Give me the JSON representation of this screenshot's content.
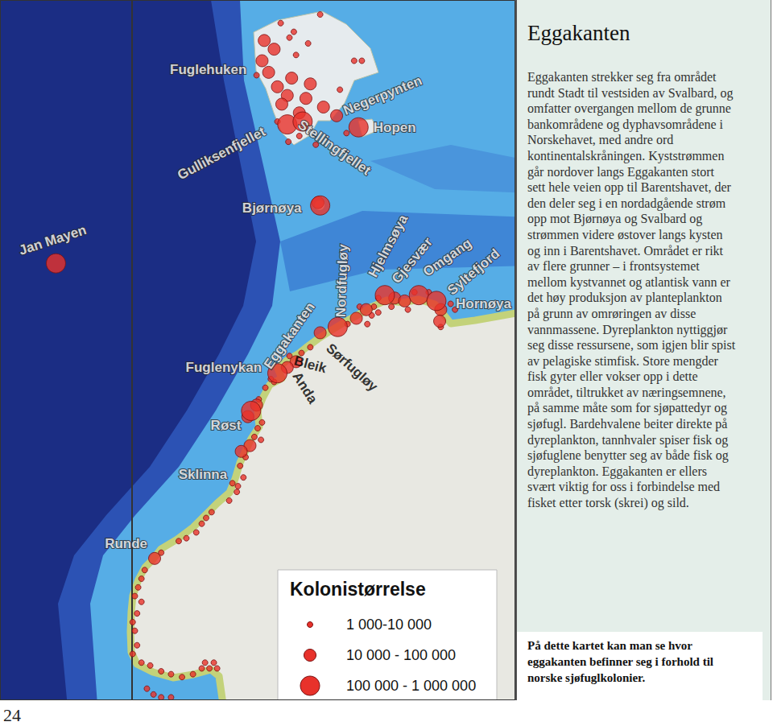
{
  "chart_data": {
    "type": "scatter",
    "xlim": [
      -12,
      35
    ],
    "ylim": [
      56.8,
      81
    ],
    "tick_labels": false,
    "grid": false,
    "legend": "lower right",
    "legend_title": "Kolonistørrelse",
    "marker": "circle",
    "series": [
      {
        "name": "1 000-10 000",
        "color": "#e8322b",
        "points": [
          [
            13.6,
            80.2
          ],
          [
            14.4,
            79.7
          ],
          [
            16.1,
            79.5
          ],
          [
            17.2,
            80.5
          ],
          [
            20.3,
            78.9
          ],
          [
            21.0,
            78.9
          ],
          [
            15.0,
            79.1
          ],
          [
            15.3,
            76.3
          ],
          [
            16.8,
            76.0
          ],
          [
            14.3,
            76.1
          ],
          [
            13.3,
            76.8
          ],
          [
            19.6,
            76.4
          ],
          [
            19.0,
            77.9
          ],
          [
            11.4,
            78.4
          ],
          [
            14.8,
            79.9
          ],
          [
            22.1,
            70.4
          ],
          [
            22.5,
            70.7
          ],
          [
            23.7,
            70.4
          ],
          [
            25.2,
            70.3
          ],
          [
            25.8,
            70.9
          ],
          [
            27.1,
            70.9
          ],
          [
            29.1,
            70.5
          ],
          [
            29.5,
            70.3
          ],
          [
            28.2,
            69.7
          ],
          [
            19.7,
            69.8
          ],
          [
            21.5,
            69.8
          ],
          [
            22.5,
            70.2
          ],
          [
            20.8,
            70.4
          ],
          [
            21.9,
            70.1
          ],
          [
            16.3,
            69.0
          ],
          [
            15.5,
            68.8
          ],
          [
            14.4,
            68.7
          ],
          [
            13.0,
            67.8
          ],
          [
            12.2,
            67.6
          ],
          [
            12.7,
            67.9
          ],
          [
            11.6,
            67.2
          ],
          [
            11.9,
            66.4
          ],
          [
            11.5,
            66.2
          ],
          [
            11.2,
            65.9
          ],
          [
            11.8,
            65.8
          ],
          [
            10.4,
            65.2
          ],
          [
            9.9,
            64.9
          ],
          [
            10.2,
            64.5
          ],
          [
            9.7,
            64.2
          ],
          [
            9.2,
            64.3
          ],
          [
            9.6,
            64.0
          ],
          [
            8.9,
            63.7
          ],
          [
            7.3,
            63.3
          ],
          [
            6.8,
            63.1
          ],
          [
            6.4,
            62.9
          ],
          [
            5.9,
            62.6
          ],
          [
            5.0,
            62.4
          ],
          [
            4.3,
            62.3
          ],
          [
            2.7,
            61.9
          ],
          [
            1.2,
            61.3
          ],
          [
            0.9,
            61.0
          ],
          [
            0.6,
            60.7
          ],
          [
            0.3,
            60.4
          ],
          [
            0.9,
            60.2
          ],
          [
            0.5,
            59.8
          ],
          [
            0.1,
            59.5
          ],
          [
            0.3,
            59.2
          ],
          [
            0.5,
            58.7
          ],
          [
            0.1,
            58.4
          ],
          [
            0.9,
            58.1
          ],
          [
            1.7,
            58.0
          ],
          [
            2.7,
            57.8
          ],
          [
            3.6,
            57.7
          ],
          [
            4.6,
            57.6
          ],
          [
            5.6,
            57.7
          ],
          [
            6.4,
            57.9
          ],
          [
            7.1,
            57.9
          ],
          [
            7.8,
            57.9
          ],
          [
            7.5,
            58.1
          ],
          [
            6.7,
            58.1
          ],
          [
            2.0,
            57.0
          ],
          [
            2.7,
            56.9
          ],
          [
            3.6,
            56.9
          ],
          [
            1.4,
            57.2
          ]
        ]
      },
      {
        "name": "10 000 - 100 000",
        "color": "#e8322b",
        "points": [
          [
            12.1,
            79.6
          ],
          [
            13.0,
            79.3
          ],
          [
            11.9,
            78.9
          ],
          [
            12.5,
            78.5
          ],
          [
            13.3,
            78.0
          ],
          [
            14.6,
            78.3
          ],
          [
            14.2,
            77.7
          ],
          [
            13.7,
            77.4
          ],
          [
            15.9,
            77.6
          ],
          [
            15.3,
            77.1
          ],
          [
            17.5,
            77.3
          ],
          [
            18.7,
            77.0
          ],
          [
            16.3,
            78.1
          ],
          [
            17.0,
            74.0
          ],
          [
            17.2,
            69.5
          ],
          [
            20.5,
            70.0
          ],
          [
            21.4,
            70.3
          ],
          [
            24.0,
            70.7
          ],
          [
            24.9,
            70.6
          ],
          [
            28.2,
            70.3
          ],
          [
            28.1,
            69.9
          ],
          [
            15.0,
            68.5
          ],
          [
            14.2,
            68.3
          ],
          [
            11.4,
            67.0
          ],
          [
            10.6,
            66.6
          ],
          [
            10.8,
            65.6
          ],
          [
            10.0,
            65.4
          ],
          [
            2.1,
            61.7
          ]
        ]
      },
      {
        "name": "100 000 - 1 000 000",
        "color": "#e8322b",
        "points": [
          [
            14.2,
            76.7
          ],
          [
            15.6,
            76.8
          ],
          [
            20.7,
            76.6
          ],
          [
            17.2,
            73.9
          ],
          [
            -6.9,
            71.9
          ],
          [
            23.1,
            70.8
          ],
          [
            26.2,
            70.8
          ],
          [
            27.8,
            70.6
          ],
          [
            18.8,
            69.7
          ],
          [
            13.3,
            68.1
          ],
          [
            10.9,
            66.8
          ]
        ]
      }
    ],
    "place_labels": [
      {
        "name": "Fuglehuken",
        "lon": 7.0,
        "lat": 78.6,
        "color": "#ffffff"
      },
      {
        "name": "Negerpynten",
        "lon": 22.9,
        "lat": 77.7,
        "color": "#ffffff"
      },
      {
        "name": "Hopen",
        "lon": 24.0,
        "lat": 76.6,
        "color": "#ffffff"
      },
      {
        "name": "Gulliksenfjellet",
        "lon": 8.2,
        "lat": 75.7,
        "color": "#ffffff"
      },
      {
        "name": "Stellingfjellet",
        "lon": 18.5,
        "lat": 75.9,
        "color": "#ffffff"
      },
      {
        "name": "Bjørnøya",
        "lon": 12.8,
        "lat": 73.8,
        "color": "#ffffff"
      },
      {
        "name": "Jan Mayen",
        "lon": -7.2,
        "lat": 72.7,
        "color": "#ffffff"
      },
      {
        "name": "Nordfugløy",
        "lon": 19.2,
        "lat": 71.3,
        "color": "#ffffff"
      },
      {
        "name": "Hjelmsøya",
        "lon": 23.4,
        "lat": 72.5,
        "color": "#ffffff"
      },
      {
        "name": "Gjesvær",
        "lon": 25.6,
        "lat": 72.0,
        "color": "#ffffff"
      },
      {
        "name": "Omgang",
        "lon": 28.8,
        "lat": 72.1,
        "color": "#ffffff"
      },
      {
        "name": "Syltefjord",
        "lon": 31.2,
        "lat": 71.6,
        "color": "#ffffff"
      },
      {
        "name": "Hornøya",
        "lon": 32.1,
        "lat": 70.5,
        "color": "#ffffff"
      },
      {
        "name": "Eggakanten",
        "lon": 14.4,
        "lat": 69.4,
        "color": "#ffffff"
      },
      {
        "name": "Fuglenykan",
        "lon": 8.4,
        "lat": 68.3,
        "color": "#ffffff"
      },
      {
        "name": "Sørfugløy",
        "lon": 20.1,
        "lat": 68.3,
        "color": "#000000"
      },
      {
        "name": "Bleik",
        "lon": 16.3,
        "lat": 68.4,
        "color": "#000000"
      },
      {
        "name": "Anda",
        "lon": 15.8,
        "lat": 67.6,
        "color": "#000000"
      },
      {
        "name": "Røst",
        "lon": 8.6,
        "lat": 66.3,
        "color": "#ffffff"
      },
      {
        "name": "Sklinna",
        "lon": 6.5,
        "lat": 64.6,
        "color": "#ffffff"
      },
      {
        "name": "Runde",
        "lon": -0.5,
        "lat": 62.2,
        "color": "#ffffff"
      }
    ]
  },
  "text_panel": {
    "title": "Eggakanten",
    "lines": [
      "Eggakanten strekker seg fra området",
      "rundt Stadt til vestsiden av Svalbard, og",
      "omfatter overgangen mellom de grunne",
      "bankområdene og dyphavsområdene i",
      "Norskehavet, med andre ord",
      "kontinentalskråningen. Kyststrømmen",
      "går nordover langs Eggakanten stort",
      "sett hele veien opp til Barentshavet, der",
      "den deler seg i en nordadgående strøm",
      "opp mot Bjørnøya og Svalbard og",
      "strømmen videre østover langs kysten",
      "og inn i Barentshavet. Området er rikt",
      "av flere grunner – i frontsystemet",
      "mellom kystvannet og atlantisk vann er",
      "det høy produksjon av planteplankton",
      "på grunn av omrøringen av disse",
      "vannmassene. Dyreplankton nyttiggjør",
      "seg disse ressursene, som igjen blir spist",
      "av pelagiske stimfisk. Store mengder",
      "fisk gyter eller vokser opp i dette",
      "området, tiltrukket av næringsemnene,",
      "på samme måte som for sjøpattedyr og",
      "sjøfugl. Bardehvalene beiter direkte på",
      "dyreplankton, tannhvaler spiser fisk og",
      "sjøfuglene benytter seg av både fisk og",
      "dyreplankton. Eggakanten er ellers",
      "svært viktig for oss i forbindelse med",
      "fisket etter torsk (skrei) og sild."
    ],
    "caption_lines": [
      "På dette kartet kan man se hvor",
      "eggakanten befinner seg i forhold til",
      "norske sjøfuglkolonier."
    ]
  },
  "page_number": 24
}
